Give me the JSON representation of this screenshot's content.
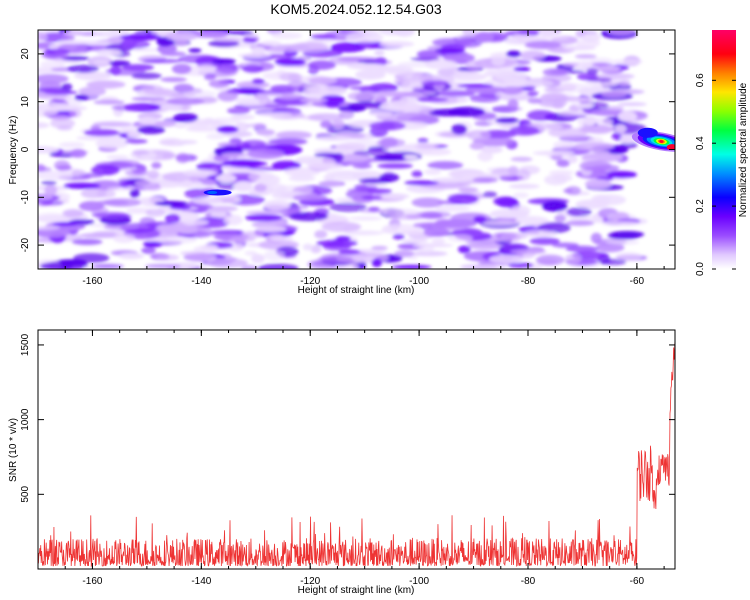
{
  "title": "KOM5.2024.052.12.54.G03",
  "chart_data": [
    {
      "type": "heatmap",
      "xlabel": "Height of straight line (km)",
      "ylabel": "Frequency (Hz)",
      "xlim": [
        -170,
        -53
      ],
      "ylim": [
        -25,
        25
      ],
      "xticks": [
        -160,
        -140,
        -120,
        -100,
        -80,
        -60
      ],
      "yticks": [
        -20,
        -10,
        0,
        10,
        20
      ],
      "colorbar": {
        "label": "Normalized spectral amplitude",
        "range": [
          0.0,
          0.76
        ],
        "ticks": [
          0.0,
          0.2,
          0.4,
          0.6
        ],
        "colormap": "gist_rainbow_r (white-purple-blue-cyan-green-yellow-red-pink)"
      },
      "background_level": "0.0-0.25 (scattered purple blobs across full range)",
      "peak": {
        "x": -56,
        "y": 2,
        "value": 0.7
      },
      "secondary_feature": {
        "x": -137,
        "y": -9,
        "value": 0.25
      }
    },
    {
      "type": "line",
      "xlabel": "Height of straight line (km)",
      "ylabel": "SNR (10 * v/v)",
      "xlim": [
        -170,
        -53
      ],
      "ylim": [
        0,
        1600
      ],
      "xticks": [
        -160,
        -140,
        -120,
        -100,
        -80,
        -60
      ],
      "yticks": [
        500,
        1000,
        1500
      ],
      "color": "#ee3333",
      "series": [
        {
          "segments": [
            {
              "x": [
                -170,
                -60
              ],
              "baseline": 120,
              "noise_range": [
                20,
                360
              ]
            },
            {
              "x": [
                -60,
                -57
              ],
              "baseline": 650,
              "noise_range": [
                450,
                830
              ]
            },
            {
              "x": [
                -57,
                -56.5
              ],
              "baseline": 400,
              "noise_range": [
                340,
                560
              ]
            },
            {
              "x": [
                -56.5,
                -54
              ],
              "baseline": 650,
              "noise_range": [
                550,
                800
              ]
            },
            {
              "x": [
                -54,
                -53
              ],
              "baseline": 1250,
              "noise_range": [
                1000,
                1600
              ]
            }
          ]
        }
      ]
    }
  ]
}
